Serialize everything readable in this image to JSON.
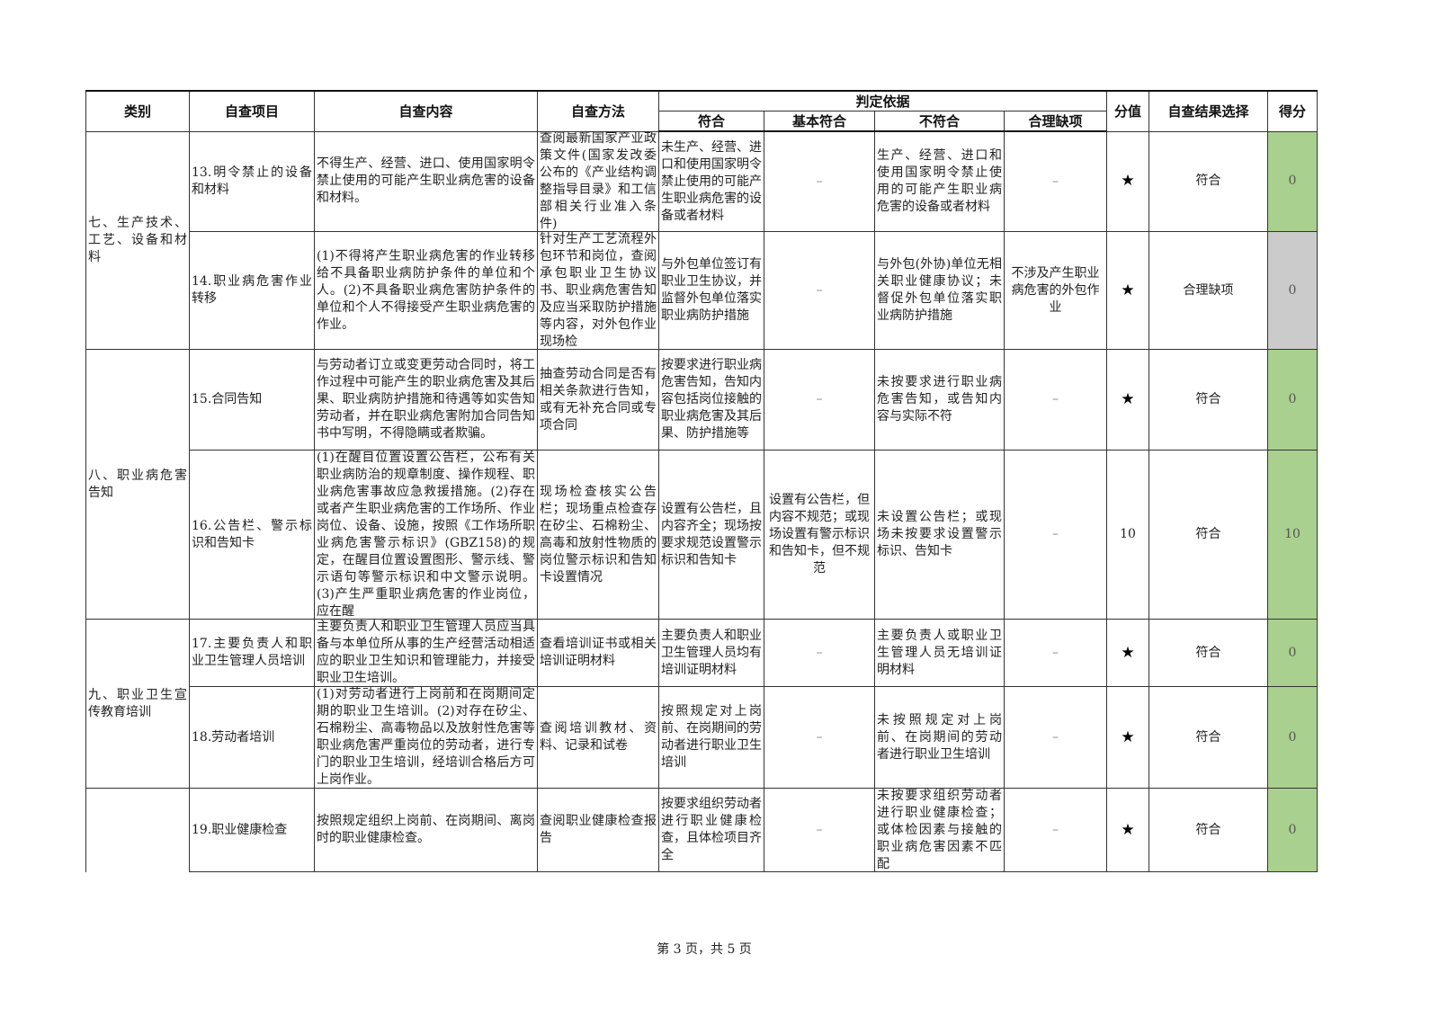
{
  "headers": {
    "category": "类别",
    "item": "自查项目",
    "content": "自查内容",
    "method": "自查方法",
    "basis": "判定依据",
    "comply": "符合",
    "basic_comply": "基本符合",
    "non_comply": "不符合",
    "reasonable_missing": "合理缺项",
    "points": "分值",
    "result": "自查结果选择",
    "score": "得分"
  },
  "categories": [
    {
      "label": "七、生产技术、工艺、设备和材料"
    },
    {
      "label": "八、职业病危害告知"
    },
    {
      "label": "九、职业卫生宣传教育培训"
    }
  ],
  "rows": [
    {
      "item": "13.明令禁止的设备和材料",
      "content": "不得生产、经营、进口、使用国家明令禁止使用的可能产生职业病危害的设备和材料。",
      "method": "查阅最新国家产业政策文件(国家发改委公布的《产业结构调整指导目录》和工信部相关行业准入条件)",
      "comply": "未生产、经营、进口和使用国家明令禁止使用的可能产生职业病危害的设备或者材料",
      "basic_comply": "–",
      "non_comply": "生产、经营、进口和使用国家明令禁止使用的可能产生职业病危害的设备或者材料",
      "reasonable_missing": "–",
      "points": "★",
      "result": "符合",
      "score": "0",
      "score_color": "#a9d08e"
    },
    {
      "item": "14.职业病危害作业转移",
      "content": "(1)不得将产生职业病危害的作业转移给不具备职业病防护条件的单位和个人。(2)不具备职业病危害防护条件的单位和个人不得接受产生职业病危害的作业。",
      "method": "针对生产工艺流程外包环节和岗位，查阅承包职业卫生协议书、职业病危害告知及应当采取防护措施等内容，对外包作业现场检",
      "comply": "与外包单位签订有职业卫生协议，并监督外包单位落实职业病防护措施",
      "basic_comply": "–",
      "non_comply": "与外包(外协)单位无相关职业健康协议；未督促外包单位落实职业病防护措施",
      "reasonable_missing": "不涉及产生职业病危害的外包作业",
      "points": "★",
      "result": "合理缺项",
      "score": "0",
      "score_color": "#cbcbcb"
    },
    {
      "item": "15.合同告知",
      "content": "与劳动者订立或变更劳动合同时，将工作过程中可能产生的职业病危害及其后果、职业病防护措施和待遇等如实告知劳动者，并在职业病危害附加合同告知书中写明，不得隐瞒或者欺骗。",
      "method": "抽查劳动合同是否有相关条款进行告知，或有无补充合同或专项合同",
      "comply": "按要求进行职业病危害告知，告知内容包括岗位接触的职业病危害及其后果、防护措施等",
      "basic_comply": "–",
      "non_comply": "未按要求进行职业病危害告知，或告知内容与实际不符",
      "reasonable_missing": "–",
      "points": "★",
      "result": "符合",
      "score": "0",
      "score_color": "#a9d08e"
    },
    {
      "item": "16.公告栏、警示标识和告知卡",
      "content": "(1)在醒目位置设置公告栏，公布有关职业病防治的规章制度、操作规程、职业病危害事故应急救援措施。(2)存在或者产生职业病危害的工作场所、作业岗位、设备、设施，按照《工作场所职业病危害警示标识》(GBZ158)的规定，在醒目位置设置图形、警示线、警示语句等警示标识和中文警示说明。(3)产生严重职业病危害的作业岗位，应在醒",
      "method": "现场检查核实公告栏；现场重点检查存在矽尘、石棉粉尘、高毒和放射性物质的岗位警示标识和告知卡设置情况",
      "comply": "设置有公告栏，且内容齐全；现场按要求规范设置警示标识和告知卡",
      "basic_comply": "设置有公告栏，但内容不规范；或现场设置有警示标识和告知卡，但不规范",
      "non_comply": "未设置公告栏；或现场未按要求设置警示标识、告知卡",
      "reasonable_missing": "–",
      "points": "10",
      "result": "符合",
      "score": "10",
      "score_color": "#a9d08e"
    },
    {
      "item": "17.主要负责人和职业卫生管理人员培训",
      "content": "主要负责人和职业卫生管理人员应当具备与本单位所从事的生产经营活动相适应的职业卫生知识和管理能力，并接受职业卫生培训。",
      "method": "查看培训证书或相关培训证明材料",
      "comply": "主要负责人和职业卫生管理人员均有培训证明材料",
      "basic_comply": "–",
      "non_comply": "主要负责人或职业卫生管理人员无培训证明材料",
      "reasonable_missing": "–",
      "points": "★",
      "result": "符合",
      "score": "0",
      "score_color": "#a9d08e"
    },
    {
      "item": "18.劳动者培训",
      "content": "(1)对劳动者进行上岗前和在岗期间定期的职业卫生培训。(2)对存在矽尘、石棉粉尘、高毒物品以及放射性危害等职业病危害严重岗位的劳动者，进行专门的职业卫生培训，经培训合格后方可上岗作业。",
      "method": "查阅培训教材、资料、记录和试卷",
      "comply": "按照规定对上岗前、在岗期间的劳动者进行职业卫生培训",
      "basic_comply": "–",
      "non_comply": "未按照规定对上岗前、在岗期间的劳动者进行职业卫生培训",
      "reasonable_missing": "–",
      "points": "★",
      "result": "符合",
      "score": "0",
      "score_color": "#a9d08e"
    },
    {
      "item": "19.职业健康检查",
      "content": "按照规定组织上岗前、在岗期间、离岗时的职业健康检查。",
      "method": "查阅职业健康检查报告",
      "comply": "按要求组织劳动者进行职业健康检查，且体检项目齐全",
      "basic_comply": "–",
      "non_comply": "未按要求组织劳动者进行职业健康检查；或体检因素与接触的职业病危害因素不匹配",
      "reasonable_missing": "–",
      "points": "★",
      "result": "符合",
      "score": "0",
      "score_color": "#a9d08e"
    }
  ],
  "footer": {
    "page_label": "第 3 页，共 5 页"
  }
}
